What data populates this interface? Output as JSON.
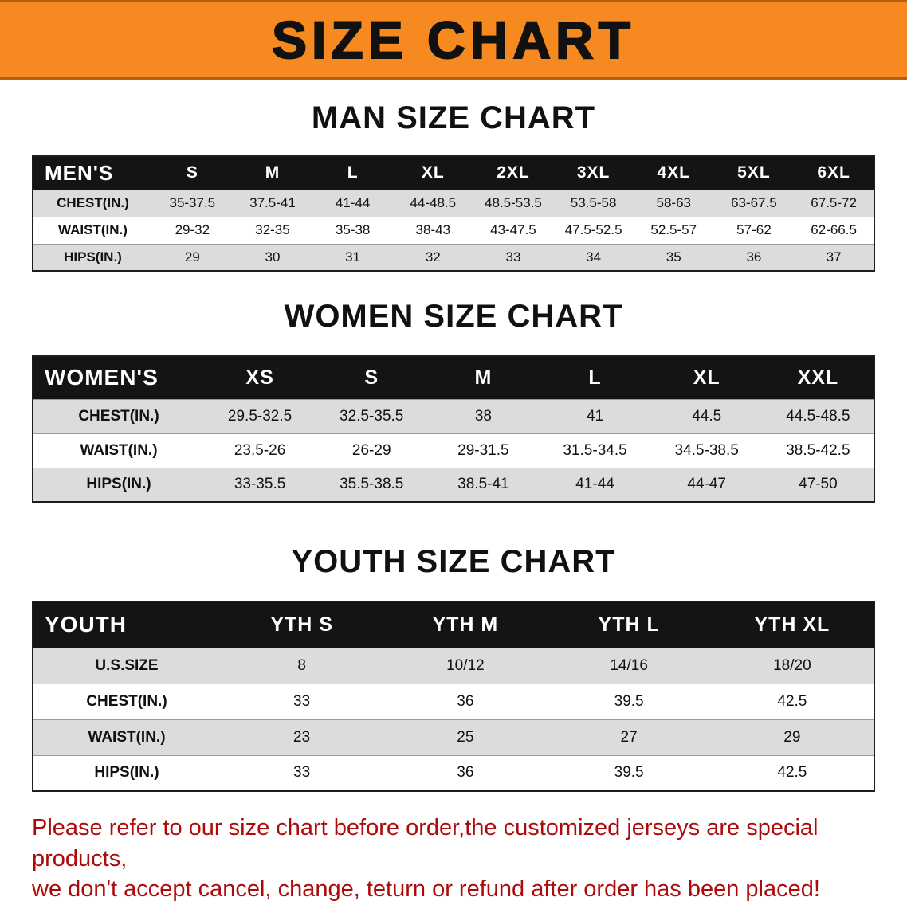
{
  "banner": {
    "title": "SIZE CHART"
  },
  "colors": {
    "banner_bg": "#f6891f",
    "table_header_bg": "#141414",
    "row_stripe": "#dcdcdc",
    "notice_text": "#ad0b0b"
  },
  "sections": [
    {
      "id": "men",
      "heading": "MAN SIZE CHART",
      "table": {
        "header_label": "MEN'S",
        "columns": [
          "S",
          "M",
          "L",
          "XL",
          "2XL",
          "3XL",
          "4XL",
          "5XL",
          "6XL"
        ],
        "rows": [
          {
            "label": "CHEST(IN.)",
            "values": [
              "35-37.5",
              "37.5-41",
              "41-44",
              "44-48.5",
              "48.5-53.5",
              "53.5-58",
              "58-63",
              "63-67.5",
              "67.5-72"
            ]
          },
          {
            "label": "WAIST(IN.)",
            "values": [
              "29-32",
              "32-35",
              "35-38",
              "38-43",
              "43-47.5",
              "47.5-52.5",
              "52.5-57",
              "57-62",
              "62-66.5"
            ]
          },
          {
            "label": "HIPS(IN.)",
            "values": [
              "29",
              "30",
              "31",
              "32",
              "33",
              "34",
              "35",
              "36",
              "37"
            ]
          }
        ]
      }
    },
    {
      "id": "women",
      "heading": "WOMEN SIZE CHART",
      "table": {
        "header_label": "WOMEN'S",
        "columns": [
          "XS",
          "S",
          "M",
          "L",
          "XL",
          "XXL"
        ],
        "rows": [
          {
            "label": "CHEST(IN.)",
            "values": [
              "29.5-32.5",
              "32.5-35.5",
              "38",
              "41",
              "44.5",
              "44.5-48.5"
            ]
          },
          {
            "label": "WAIST(IN.)",
            "values": [
              "23.5-26",
              "26-29",
              "29-31.5",
              "31.5-34.5",
              "34.5-38.5",
              "38.5-42.5"
            ]
          },
          {
            "label": "HIPS(IN.)",
            "values": [
              "33-35.5",
              "35.5-38.5",
              "38.5-41",
              "41-44",
              "44-47",
              "47-50"
            ]
          }
        ]
      }
    },
    {
      "id": "youth",
      "heading": "YOUTH SIZE CHART",
      "table": {
        "header_label": "YOUTH",
        "columns": [
          "YTH S",
          "YTH M",
          "YTH L",
          "YTH XL"
        ],
        "rows": [
          {
            "label": "U.S.SIZE",
            "values": [
              "8",
              "10/12",
              "14/16",
              "18/20"
            ]
          },
          {
            "label": "CHEST(IN.)",
            "values": [
              "33",
              "36",
              "39.5",
              "42.5"
            ]
          },
          {
            "label": "WAIST(IN.)",
            "values": [
              "23",
              "25",
              "27",
              "29"
            ]
          },
          {
            "label": "HIPS(IN.)",
            "values": [
              "33",
              "36",
              "39.5",
              "42.5"
            ]
          }
        ]
      }
    }
  ],
  "footer": {
    "line1": "Please refer to our size chart before order,the customized jerseys are special products,",
    "line2": "we don't accept cancel, change, teturn or refund after order has been placed!"
  }
}
